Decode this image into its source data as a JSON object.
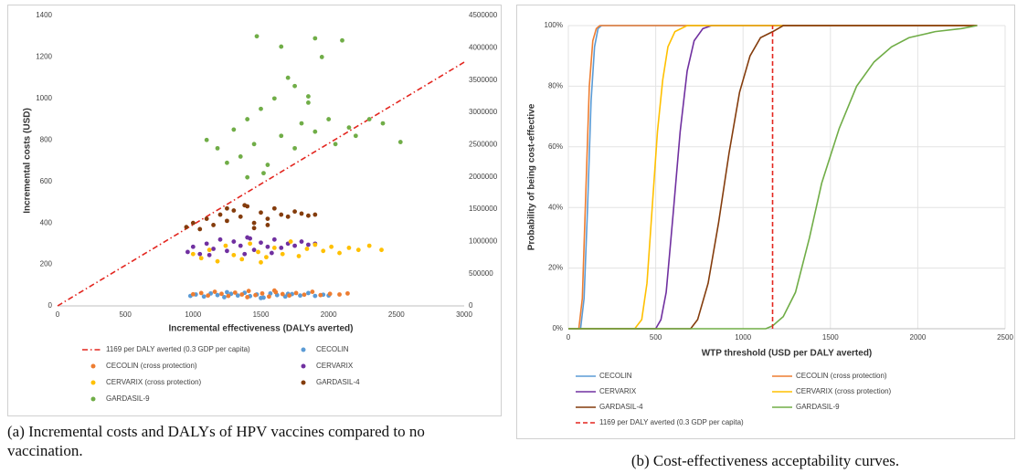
{
  "chart_data": [
    {
      "type": "scatter",
      "xlabel": "Incremental effectiveness (DALYs averted)",
      "ylabel": "Incremental costs (USD)",
      "xlim": [
        0,
        3000
      ],
      "xticks": [
        0,
        500,
        1000,
        1500,
        2000,
        2500,
        3000
      ],
      "ylim": [
        0,
        1400
      ],
      "yticks": [
        0,
        200,
        400,
        600,
        800,
        1000,
        1200,
        1400
      ],
      "y2lim": [
        0,
        4500000
      ],
      "y2ticks": [
        0,
        500000,
        1000000,
        1500000,
        2000000,
        2500000,
        3000000,
        3500000,
        4000000,
        4500000
      ],
      "series": [
        {
          "name": "1169 per DALY averted (0.3 GDP per capita)",
          "color": "#e3261f",
          "mark": "line",
          "dash": "dash-dot",
          "x": [
            0,
            3000
          ],
          "values": [
            0,
            1175
          ]
        },
        {
          "name": "CECOLIN",
          "color": "#5b9bd5",
          "x": [
            980,
            1020,
            1080,
            1130,
            1180,
            1230,
            1280,
            1330,
            1380,
            1420,
            1470,
            1520,
            1570,
            1620,
            1680,
            1730,
            1790,
            1850,
            1900,
            1960,
            2000,
            1250,
            1500,
            1700
          ],
          "values": [
            48,
            55,
            45,
            60,
            52,
            42,
            58,
            50,
            63,
            47,
            55,
            40,
            60,
            52,
            45,
            57,
            50,
            62,
            48,
            54,
            50,
            66,
            38,
            58
          ]
        },
        {
          "name": "CECOLIN (cross protection)",
          "color": "#ed7d31",
          "x": [
            1000,
            1060,
            1110,
            1160,
            1210,
            1260,
            1310,
            1360,
            1410,
            1460,
            1510,
            1560,
            1610,
            1660,
            1710,
            1760,
            1820,
            1880,
            1940,
            2010,
            2080,
            2140,
            1400,
            1600
          ],
          "values": [
            56,
            62,
            50,
            68,
            58,
            48,
            64,
            55,
            72,
            52,
            60,
            45,
            66,
            57,
            50,
            62,
            54,
            68,
            52,
            58,
            55,
            60,
            42,
            74
          ]
        },
        {
          "name": "CERVARIX",
          "color": "#7030a0",
          "x": [
            960,
            1000,
            1050,
            1100,
            1150,
            1200,
            1250,
            1300,
            1350,
            1400,
            1450,
            1500,
            1550,
            1600,
            1650,
            1700,
            1750,
            1800,
            1850,
            1900,
            1120,
            1380,
            1580,
            1420
          ],
          "values": [
            260,
            285,
            250,
            300,
            275,
            320,
            265,
            310,
            290,
            330,
            270,
            305,
            285,
            320,
            280,
            300,
            290,
            310,
            295,
            300,
            245,
            250,
            255,
            325
          ]
        },
        {
          "name": "CERVARIX (cross protection)",
          "color": "#ffc000",
          "x": [
            1000,
            1060,
            1120,
            1180,
            1240,
            1300,
            1360,
            1420,
            1480,
            1540,
            1600,
            1660,
            1720,
            1780,
            1840,
            1900,
            1960,
            2020,
            2080,
            2150,
            2220,
            2300,
            2390,
            1500
          ],
          "values": [
            250,
            230,
            270,
            215,
            290,
            245,
            225,
            300,
            260,
            235,
            280,
            250,
            310,
            240,
            275,
            295,
            265,
            285,
            255,
            280,
            270,
            290,
            270,
            210
          ]
        },
        {
          "name": "GARDASIL-4",
          "color": "#843c0c",
          "x": [
            950,
            1000,
            1050,
            1100,
            1150,
            1200,
            1250,
            1300,
            1350,
            1400,
            1450,
            1500,
            1550,
            1600,
            1650,
            1700,
            1750,
            1800,
            1850,
            1900,
            1250,
            1450,
            1380,
            1550
          ],
          "values": [
            380,
            400,
            370,
            420,
            390,
            440,
            410,
            460,
            430,
            480,
            400,
            450,
            420,
            470,
            440,
            430,
            455,
            445,
            435,
            440,
            470,
            375,
            485,
            390
          ]
        },
        {
          "name": "GARDASIL-9",
          "color": "#70ad47",
          "x": [
            1100,
            1180,
            1250,
            1300,
            1350,
            1400,
            1450,
            1500,
            1550,
            1600,
            1650,
            1700,
            1750,
            1800,
            1850,
            1900,
            1950,
            2000,
            2050,
            2100,
            2150,
            2200,
            2300,
            2400,
            2530,
            1470,
            1650,
            1900,
            1520,
            1750,
            1400,
            1850
          ],
          "values": [
            800,
            760,
            690,
            850,
            720,
            900,
            780,
            950,
            680,
            1000,
            820,
            1100,
            760,
            880,
            980,
            840,
            1200,
            900,
            780,
            1280,
            860,
            820,
            900,
            880,
            790,
            1300,
            1250,
            1290,
            640,
            1060,
            620,
            1010
          ]
        }
      ]
    },
    {
      "type": "line",
      "xlabel": "WTP threshold (USD per DALY averted)",
      "ylabel": "Probability of being cost-effective",
      "xlim": [
        0,
        2500
      ],
      "xticks": [
        0,
        500,
        1000,
        1500,
        2000,
        2500
      ],
      "ylim": [
        0,
        100
      ],
      "yticks": [
        {
          "value": 0,
          "label": "0%"
        },
        {
          "value": 20,
          "label": "20%"
        },
        {
          "value": 40,
          "label": "40%"
        },
        {
          "value": 60,
          "label": "60%"
        },
        {
          "value": 80,
          "label": "80%"
        },
        {
          "value": 100,
          "label": "100%"
        }
      ],
      "grid": true,
      "series": [
        {
          "name": "CECOLIN",
          "color": "#5b9bd5",
          "x": [
            0,
            70,
            90,
            110,
            130,
            150,
            170,
            190,
            2340
          ],
          "values": [
            0,
            0,
            10,
            40,
            75,
            93,
            99,
            100,
            100
          ]
        },
        {
          "name": "CECOLIN (cross protection)",
          "color": "#ed7d31",
          "x": [
            0,
            60,
            80,
            100,
            120,
            140,
            160,
            180,
            2340
          ],
          "values": [
            0,
            0,
            10,
            45,
            80,
            95,
            99,
            100,
            100
          ]
        },
        {
          "name": "CERVARIX",
          "color": "#7030a0",
          "x": [
            0,
            500,
            530,
            560,
            600,
            640,
            680,
            720,
            770,
            820,
            2340
          ],
          "values": [
            0,
            0,
            3,
            12,
            38,
            65,
            85,
            95,
            99,
            100,
            100
          ]
        },
        {
          "name": "CERVARIX (cross protection)",
          "color": "#ffc000",
          "x": [
            0,
            380,
            420,
            450,
            480,
            510,
            540,
            570,
            610,
            680,
            2340
          ],
          "values": [
            0,
            0,
            3,
            15,
            40,
            65,
            82,
            93,
            98,
            100,
            100
          ]
        },
        {
          "name": "GARDASIL-4",
          "color": "#843c0c",
          "x": [
            0,
            700,
            740,
            800,
            860,
            920,
            980,
            1040,
            1100,
            1170,
            1230,
            2340
          ],
          "values": [
            0,
            0,
            3,
            15,
            35,
            58,
            78,
            90,
            96,
            98,
            100,
            100
          ]
        },
        {
          "name": "GARDASIL-9",
          "color": "#70ad47",
          "x": [
            0,
            1130,
            1170,
            1230,
            1300,
            1380,
            1450,
            1550,
            1650,
            1750,
            1850,
            1950,
            2100,
            2250,
            2340
          ],
          "values": [
            0,
            0,
            1,
            4,
            12,
            30,
            48,
            66,
            80,
            88,
            93,
            96,
            98,
            99,
            100
          ]
        },
        {
          "name": "1169 per DALY averted (0.3 GDP per capita)",
          "color": "#e3261f",
          "dash": "dash",
          "x": [
            1169,
            1169
          ],
          "values": [
            0,
            100
          ]
        }
      ]
    }
  ],
  "captions": [
    "(a) Incremental costs and DALYs of HPV vaccines compared to no vaccination.",
    "(b) Cost-effectiveness acceptability curves."
  ]
}
